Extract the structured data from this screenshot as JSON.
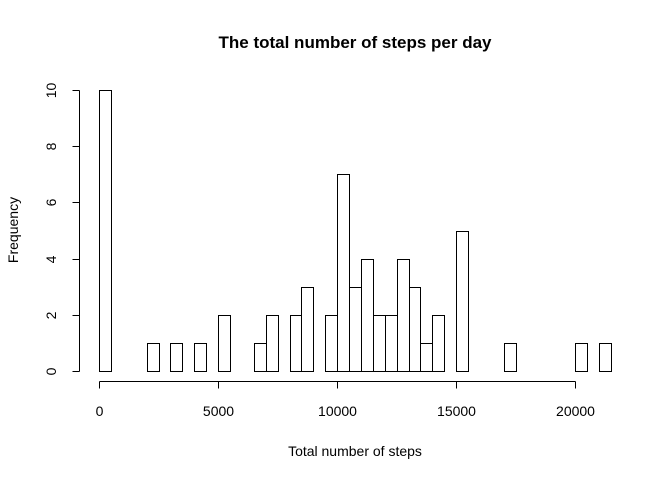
{
  "chart_data": {
    "type": "bar",
    "title": "The total number of steps per day",
    "xlabel": "Total number of steps",
    "ylabel": "Frequency",
    "bin_width": 500,
    "x_start": 0,
    "frequencies": [
      10,
      0,
      0,
      0,
      1,
      0,
      1,
      0,
      1,
      0,
      2,
      0,
      0,
      1,
      2,
      0,
      2,
      3,
      0,
      2,
      7,
      3,
      4,
      2,
      2,
      4,
      3,
      1,
      2,
      0,
      5,
      0,
      0,
      0,
      1,
      0,
      0,
      0,
      0,
      0,
      1,
      0,
      1
    ],
    "xlim": [
      0,
      21500
    ],
    "ylim": [
      0,
      10
    ],
    "x_ticks": [
      0,
      5000,
      10000,
      15000,
      20000
    ],
    "y_ticks": [
      0,
      2,
      4,
      6,
      8,
      10
    ],
    "grid": false,
    "bar_fill": "#ffffff",
    "bar_stroke": "#000000"
  }
}
